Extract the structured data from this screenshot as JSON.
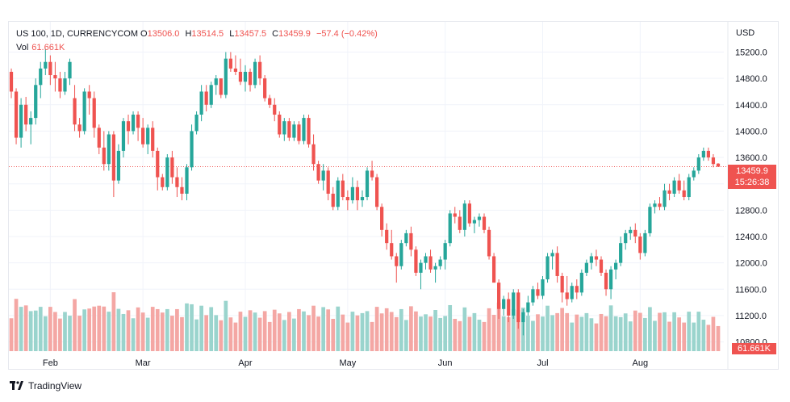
{
  "legend": {
    "symbol": "US 100, 1D, CURRENCYCOM",
    "open_label": "O",
    "open": "13506.0",
    "high_label": "H",
    "high": "13514.5",
    "low_label": "L",
    "low": "13457.5",
    "close_label": "C",
    "close": "13459.9",
    "change": "−57.4 (−0.42%)",
    "vol_label": "Vol",
    "vol_value": "61.661K"
  },
  "axis": {
    "currency": "USD"
  },
  "tags": {
    "last_price": "13459.9",
    "countdown": "15:26:38",
    "last_volume": "61.661K"
  },
  "footer": {
    "brand": "TradingView"
  },
  "colors": {
    "up": "#26a69a",
    "down": "#ef5350",
    "up_volume": "#9ad4cd",
    "down_volume": "#f4a7a4",
    "grid": "#f0f3fa",
    "axis_text": "#131722"
  },
  "chart_data": {
    "type": "candlestick",
    "y_ticks": [
      10800,
      11200,
      11600,
      12000,
      12400,
      12800,
      13200,
      13600,
      14000,
      14400,
      14800,
      15200
    ],
    "y_tick_labels": [
      "10800.0",
      "11200.0",
      "11600.0",
      "12000.0",
      "12400.0",
      "12800.0",
      "13200.0",
      "13600.0",
      "14000.0",
      "14400.0",
      "14800.0",
      "15200.0"
    ],
    "ylim": [
      10660,
      15500
    ],
    "x_labels": [
      "Feb",
      "Mar",
      "Apr",
      "May",
      "Jun",
      "Jul",
      "Aug"
    ],
    "x_label_index": [
      8,
      27,
      48,
      69,
      89,
      109,
      129
    ],
    "last_close": 13459.9,
    "grid": true,
    "candles": [
      [
        14900,
        14950,
        14500,
        14600
      ],
      [
        14600,
        14650,
        13800,
        13900
      ],
      [
        13900,
        14500,
        13750,
        14400
      ],
      [
        14400,
        14520,
        14000,
        14100
      ],
      [
        14100,
        14300,
        13800,
        14200
      ],
      [
        14200,
        14800,
        14100,
        14700
      ],
      [
        14700,
        15050,
        14500,
        14950
      ],
      [
        14950,
        15250,
        14850,
        15050
      ],
      [
        15050,
        15150,
        14700,
        14850
      ],
      [
        14850,
        15050,
        14600,
        14800
      ],
      [
        14800,
        14900,
        14500,
        14600
      ],
      [
        14600,
        14900,
        14550,
        14800
      ],
      [
        14800,
        15100,
        14700,
        15050
      ],
      [
        14500,
        14700,
        14000,
        14100
      ],
      [
        14100,
        14200,
        13900,
        14000
      ],
      [
        14000,
        14650,
        13950,
        14600
      ],
      [
        14600,
        14700,
        14250,
        14500
      ],
      [
        14500,
        14600,
        13900,
        14050
      ],
      [
        14050,
        14100,
        13650,
        13750
      ],
      [
        13750,
        14000,
        13400,
        13500
      ],
      [
        13500,
        14000,
        13400,
        13950
      ],
      [
        13950,
        14000,
        13000,
        13250
      ],
      [
        13250,
        13800,
        13200,
        13700
      ],
      [
        13700,
        14200,
        13600,
        14150
      ],
      [
        14150,
        14250,
        13800,
        14000
      ],
      [
        14000,
        14300,
        13950,
        14250
      ],
      [
        14250,
        14300,
        13850,
        14050
      ],
      [
        14050,
        14200,
        13750,
        13800
      ],
      [
        13800,
        14100,
        13650,
        14050
      ],
      [
        14050,
        14150,
        13600,
        13700
      ],
      [
        13700,
        13750,
        13100,
        13300
      ],
      [
        13300,
        13350,
        13100,
        13150
      ],
      [
        13150,
        13650,
        13100,
        13600
      ],
      [
        13600,
        13700,
        13200,
        13300
      ],
      [
        13300,
        13450,
        13000,
        13150
      ],
      [
        13150,
        13300,
        12950,
        13050
      ],
      [
        13050,
        13500,
        12950,
        13450
      ],
      [
        13450,
        14100,
        13400,
        14000
      ],
      [
        14000,
        14300,
        13950,
        14250
      ],
      [
        14250,
        14700,
        14150,
        14600
      ],
      [
        14600,
        14700,
        14300,
        14400
      ],
      [
        14400,
        14750,
        14350,
        14700
      ],
      [
        14700,
        14850,
        14550,
        14800
      ],
      [
        14800,
        14800,
        14500,
        14550
      ],
      [
        14550,
        15200,
        14500,
        15100
      ],
      [
        15100,
        15200,
        14900,
        14950
      ],
      [
        14950,
        15150,
        14850,
        14900
      ],
      [
        14900,
        15100,
        14700,
        14750
      ],
      [
        14750,
        15000,
        14600,
        14900
      ],
      [
        14900,
        14950,
        14600,
        14700
      ],
      [
        14700,
        15100,
        14650,
        15050
      ],
      [
        15050,
        15150,
        14700,
        14800
      ],
      [
        14800,
        14850,
        14450,
        14500
      ],
      [
        14500,
        14550,
        14350,
        14400
      ],
      [
        14400,
        14500,
        14150,
        14250
      ],
      [
        14250,
        14300,
        13900,
        13950
      ],
      [
        13950,
        14200,
        13850,
        14150
      ],
      [
        14150,
        14200,
        13850,
        13900
      ],
      [
        13900,
        14150,
        13850,
        14100
      ],
      [
        14100,
        14150,
        13800,
        13850
      ],
      [
        13850,
        14250,
        13800,
        14200
      ],
      [
        14200,
        14250,
        13750,
        13800
      ],
      [
        13800,
        13950,
        13400,
        13500
      ],
      [
        13500,
        13550,
        13200,
        13250
      ],
      [
        13250,
        13500,
        13100,
        13400
      ],
      [
        13400,
        13450,
        12950,
        13050
      ],
      [
        13050,
        13150,
        12800,
        12850
      ],
      [
        12850,
        13300,
        12800,
        13250
      ],
      [
        13250,
        13350,
        12950,
        13000
      ],
      [
        13000,
        13100,
        12800,
        12950
      ],
      [
        12950,
        13300,
        12900,
        13150
      ],
      [
        13150,
        13250,
        12800,
        12950
      ],
      [
        12950,
        13100,
        12850,
        13000
      ],
      [
        13000,
        13450,
        12950,
        13400
      ],
      [
        13400,
        13550,
        13250,
        13300
      ],
      [
        13300,
        13350,
        12800,
        12850
      ],
      [
        12850,
        12900,
        12400,
        12500
      ],
      [
        12500,
        12600,
        12200,
        12300
      ],
      [
        12300,
        12500,
        12050,
        12100
      ],
      [
        12100,
        12150,
        11700,
        11950
      ],
      [
        11950,
        12350,
        11900,
        12300
      ],
      [
        12300,
        12500,
        12250,
        12450
      ],
      [
        12450,
        12550,
        12100,
        12200
      ],
      [
        12200,
        12250,
        11800,
        11850
      ],
      [
        11850,
        12050,
        11600,
        12000
      ],
      [
        12000,
        12150,
        11900,
        12100
      ],
      [
        12100,
        12200,
        11850,
        11900
      ],
      [
        11900,
        12000,
        11700,
        11950
      ],
      [
        11950,
        12100,
        11900,
        12050
      ],
      [
        12050,
        12350,
        11900,
        12300
      ],
      [
        12300,
        12800,
        12250,
        12750
      ],
      [
        12750,
        12850,
        12600,
        12700
      ],
      [
        12700,
        12800,
        12450,
        12500
      ],
      [
        12500,
        12950,
        12400,
        12900
      ],
      [
        12900,
        12950,
        12550,
        12600
      ],
      [
        12600,
        12700,
        12450,
        12650
      ],
      [
        12650,
        12750,
        12550,
        12700
      ],
      [
        12700,
        12750,
        12450,
        12500
      ],
      [
        12500,
        12550,
        12050,
        12100
      ],
      [
        12100,
        12150,
        11700,
        11700
      ],
      [
        11700,
        11750,
        11150,
        11300
      ],
      [
        11300,
        11500,
        11200,
        11450
      ],
      [
        11450,
        11550,
        11100,
        11200
      ],
      [
        11200,
        11600,
        11150,
        11550
      ],
      [
        11550,
        11600,
        11000,
        11100
      ],
      [
        11100,
        11300,
        10900,
        11250
      ],
      [
        11250,
        11500,
        11200,
        11400
      ],
      [
        11400,
        11650,
        11350,
        11600
      ],
      [
        11600,
        11700,
        11450,
        11500
      ],
      [
        11500,
        11800,
        11450,
        11750
      ],
      [
        11750,
        12150,
        11700,
        12100
      ],
      [
        12100,
        12200,
        11900,
        12150
      ],
      [
        12150,
        12250,
        11700,
        11800
      ],
      [
        11800,
        11850,
        11400,
        11550
      ],
      [
        11550,
        11800,
        11350,
        11450
      ],
      [
        11450,
        11700,
        11400,
        11650
      ],
      [
        11650,
        11750,
        11450,
        11550
      ],
      [
        11550,
        11900,
        11500,
        11850
      ],
      [
        11850,
        12050,
        11800,
        12000
      ],
      [
        12000,
        12150,
        11900,
        12100
      ],
      [
        12100,
        12200,
        11950,
        12050
      ],
      [
        12050,
        12100,
        11800,
        11850
      ],
      [
        11850,
        11900,
        11500,
        11600
      ],
      [
        11600,
        11950,
        11450,
        11900
      ],
      [
        11900,
        12050,
        11750,
        12000
      ],
      [
        12000,
        12400,
        11950,
        12300
      ],
      [
        12300,
        12500,
        12200,
        12450
      ],
      [
        12450,
        12550,
        12350,
        12500
      ],
      [
        12500,
        12600,
        12300,
        12400
      ],
      [
        12400,
        12450,
        12050,
        12150
      ],
      [
        12150,
        12500,
        12100,
        12450
      ],
      [
        12450,
        12900,
        12400,
        12850
      ],
      [
        12850,
        12950,
        12750,
        12900
      ],
      [
        12900,
        13000,
        12800,
        12850
      ],
      [
        12850,
        13200,
        12800,
        13100
      ],
      [
        13100,
        13200,
        12950,
        13050
      ],
      [
        13050,
        13300,
        13000,
        13250
      ],
      [
        13250,
        13350,
        13050,
        13100
      ],
      [
        13100,
        13250,
        12950,
        13000
      ],
      [
        13000,
        13350,
        12950,
        13300
      ],
      [
        13300,
        13450,
        13250,
        13400
      ],
      [
        13400,
        13650,
        13350,
        13600
      ],
      [
        13600,
        13750,
        13550,
        13700
      ],
      [
        13700,
        13750,
        13550,
        13600
      ],
      [
        13600,
        13650,
        13450,
        13500
      ],
      [
        13506,
        13514.5,
        13457.5,
        13459.9
      ]
    ],
    "volume_max": 120
  }
}
